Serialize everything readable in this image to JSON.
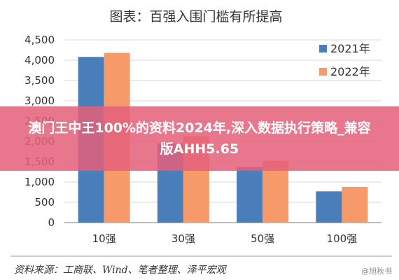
{
  "chart_data": {
    "type": "bar",
    "title": "图表：百强入围门槛有所提高",
    "categories": [
      "10强",
      "30强",
      "50强",
      "100强"
    ],
    "series": [
      {
        "name": "2021年",
        "values": [
          4080,
          1950,
          1370,
          770
        ],
        "color": "#4a7ebb"
      },
      {
        "name": "2022年",
        "values": [
          4180,
          2130,
          1520,
          880
        ],
        "color": "#f59a68"
      }
    ],
    "yticks": [
      "0",
      "500",
      "1,000",
      "1,500",
      "2,000",
      "2,500",
      "3,000",
      "3,500",
      "4,000",
      "4,500"
    ],
    "ylim": [
      0,
      4500
    ],
    "legend_position": "top-right",
    "source": "资料来源：工商联、Wind、笔者整理、泽平宏观"
  },
  "overlay": {
    "headline": "澳门王中王100%的资料2024年,深入数据执行策略_兼容版AHH5.65",
    "watermark": "@旭秋书"
  }
}
